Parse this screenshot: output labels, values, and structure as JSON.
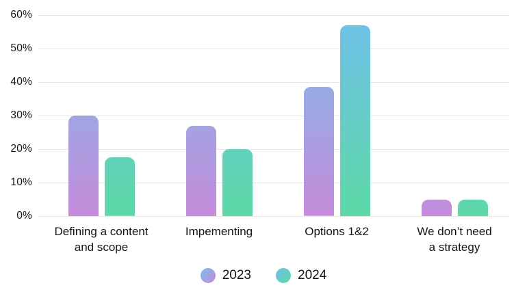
{
  "chart_data": {
    "type": "bar",
    "title": "",
    "xlabel": "",
    "ylabel": "",
    "categories": [
      [
        "Defining a content",
        "and scope"
      ],
      [
        "Impementing"
      ],
      [
        "Options 1&2"
      ],
      [
        "We don’t need",
        "a strategy"
      ]
    ],
    "series": [
      {
        "name": "2023",
        "values": [
          30,
          27,
          38.5,
          5
        ],
        "gradient_top": "#7bbfe9",
        "gradient_bottom": "#c58bda"
      },
      {
        "name": "2024",
        "values": [
          17.5,
          20,
          57,
          5
        ],
        "gradient_top": "#6fc0e9",
        "gradient_bottom": "#5dd9a7"
      }
    ],
    "ylim": [
      0,
      60
    ],
    "yticks": [
      0,
      10,
      20,
      30,
      40,
      50,
      60
    ],
    "ytick_suffix": "%",
    "grid": true,
    "legend_position": "bottom-center",
    "colors": {
      "background": "#ffffff",
      "gridline": "#e5e5e5",
      "text": "#161616"
    }
  }
}
